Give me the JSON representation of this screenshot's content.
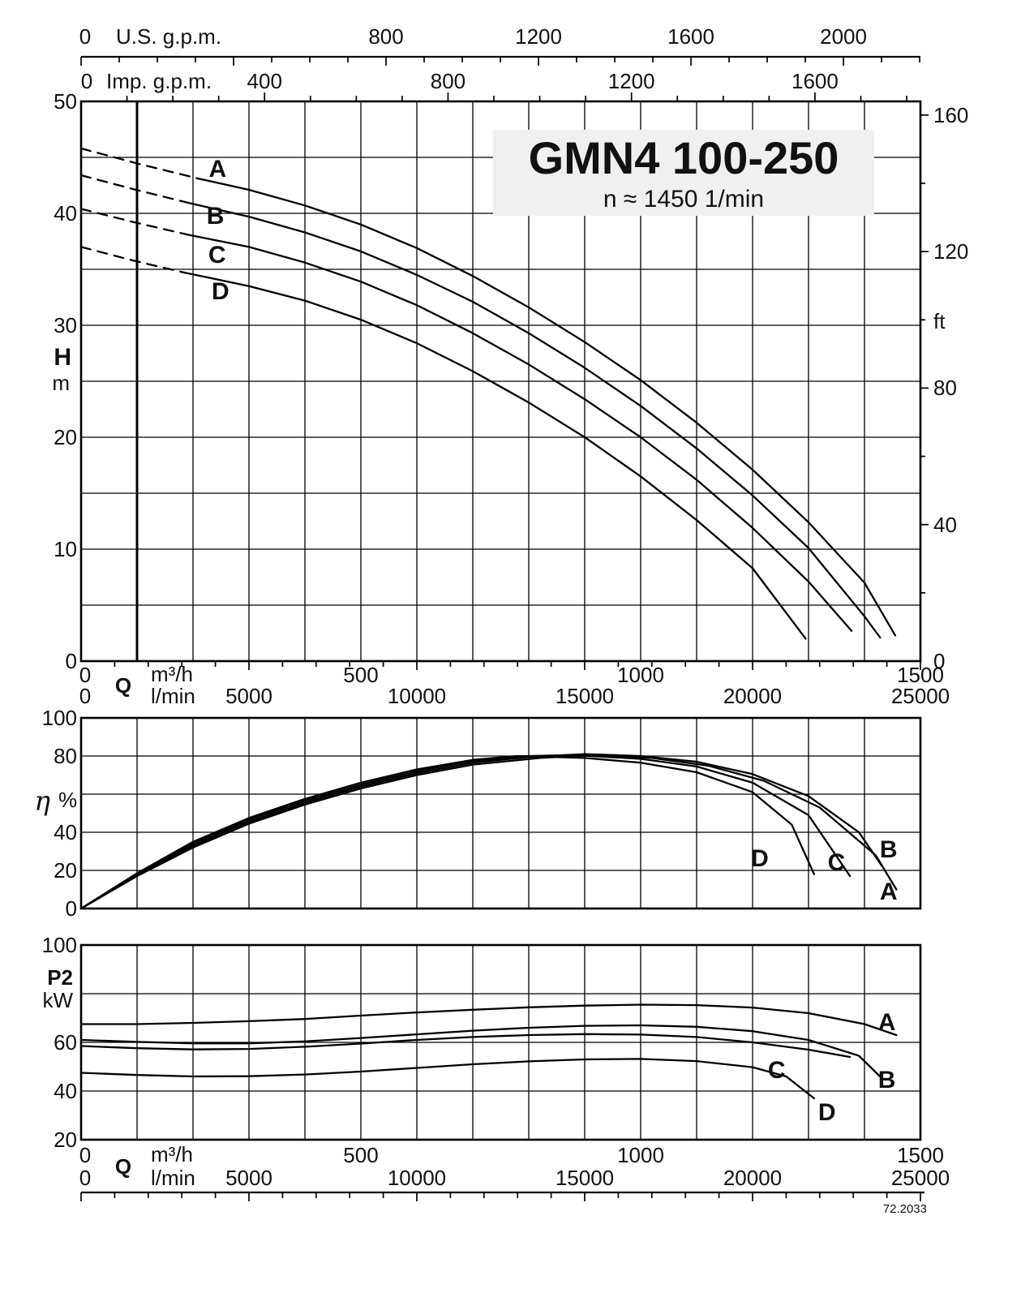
{
  "page": {
    "code": "72.2033"
  },
  "chart_data": [
    {
      "id": "head-capacity",
      "type": "line",
      "title": "GMN4 100-250",
      "subtitle": "n ≈ 1450 1/min",
      "x_top": [
        {
          "unit": "U.S. g.p.m.",
          "ticks": [
            0,
            800,
            1200,
            1600,
            2000
          ],
          "range": [
            0,
            2202
          ]
        },
        {
          "unit": "Imp. g.p.m.",
          "ticks": [
            0,
            400,
            800,
            1200,
            1600
          ],
          "range": [
            0,
            1830
          ]
        }
      ],
      "x_bottom": {
        "q_label": "Q",
        "unit_m3h": "m³/h",
        "unit_lmin": "l/min",
        "ticks_m3h": [
          0,
          500,
          1000,
          1500
        ],
        "ticks_lmin": [
          0,
          5000,
          10000,
          15000,
          20000,
          25000
        ],
        "range_m3h": [
          0,
          1500
        ]
      },
      "y_left": {
        "label": "H",
        "unit": "m",
        "ticks": [
          50,
          40,
          30,
          20,
          10,
          0
        ],
        "range": [
          0,
          50
        ],
        "grid_step": 5
      },
      "y_right": {
        "unit": "ft",
        "ticks": [
          160,
          120,
          80,
          40,
          0
        ],
        "range": [
          0,
          164
        ]
      },
      "series": [
        {
          "name": "A",
          "dash": [
            [
              0,
              45.8
            ],
            [
              105,
              44.4
            ],
            [
              210,
              43.1
            ]
          ],
          "points": [
            [
              210,
              43.1
            ],
            [
              300,
              42.1
            ],
            [
              400,
              40.7
            ],
            [
              500,
              39
            ],
            [
              600,
              36.9
            ],
            [
              700,
              34.4
            ],
            [
              800,
              31.6
            ],
            [
              900,
              28.5
            ],
            [
              1000,
              25.1
            ],
            [
              1100,
              21.3
            ],
            [
              1200,
              17.1
            ],
            [
              1300,
              12.4
            ],
            [
              1400,
              7
            ],
            [
              1455,
              2.3
            ]
          ]
        },
        {
          "name": "B",
          "dash": [
            [
              0,
              43.4
            ],
            [
              98,
              42.1
            ],
            [
              195,
              40.9
            ]
          ],
          "points": [
            [
              195,
              40.9
            ],
            [
              300,
              39.7
            ],
            [
              400,
              38.3
            ],
            [
              500,
              36.6
            ],
            [
              600,
              34.5
            ],
            [
              700,
              32.1
            ],
            [
              800,
              29.3
            ],
            [
              900,
              26.2
            ],
            [
              1000,
              22.8
            ],
            [
              1100,
              19
            ],
            [
              1200,
              14.8
            ],
            [
              1300,
              10.1
            ],
            [
              1400,
              4
            ],
            [
              1428,
              2.1
            ]
          ]
        },
        {
          "name": "C",
          "dash": [
            [
              0,
              40.4
            ],
            [
              95,
              39.2
            ],
            [
              190,
              38.1
            ]
          ],
          "points": [
            [
              190,
              38.1
            ],
            [
              300,
              37
            ],
            [
              400,
              35.6
            ],
            [
              500,
              33.9
            ],
            [
              600,
              31.8
            ],
            [
              700,
              29.3
            ],
            [
              800,
              26.5
            ],
            [
              900,
              23.4
            ],
            [
              1000,
              20
            ],
            [
              1100,
              16.2
            ],
            [
              1200,
              11.9
            ],
            [
              1300,
              7.1
            ],
            [
              1377,
              2.7
            ]
          ]
        },
        {
          "name": "D",
          "dash": [
            [
              0,
              37
            ],
            [
              92,
              35.8
            ],
            [
              185,
              34.7
            ]
          ],
          "points": [
            [
              185,
              34.7
            ],
            [
              300,
              33.5
            ],
            [
              400,
              32.2
            ],
            [
              500,
              30.5
            ],
            [
              600,
              28.4
            ],
            [
              700,
              25.9
            ],
            [
              800,
              23.1
            ],
            [
              900,
              20
            ],
            [
              1000,
              16.5
            ],
            [
              1100,
              12.6
            ],
            [
              1200,
              8.3
            ],
            [
              1295,
              2
            ]
          ]
        }
      ],
      "curve_labels": [
        {
          "text": "A",
          "q": 244,
          "v": 43.9
        },
        {
          "text": "B",
          "q": 240,
          "v": 39.7
        },
        {
          "text": "C",
          "q": 243,
          "v": 36.2
        },
        {
          "text": "D",
          "q": 249,
          "v": 33.0
        }
      ]
    },
    {
      "id": "efficiency",
      "type": "line",
      "y_left": {
        "label": "η",
        "unit": "%",
        "ticks": [
          100,
          80,
          40,
          20,
          0
        ],
        "range": [
          0,
          100
        ],
        "grid_step": 20
      },
      "series": [
        {
          "name": "A",
          "points": [
            [
              0,
              0
            ],
            [
              100,
              17
            ],
            [
              200,
              32
            ],
            [
              300,
              44.5
            ],
            [
              400,
              54.5
            ],
            [
              500,
              63
            ],
            [
              600,
              70
            ],
            [
              700,
              75.5
            ],
            [
              820,
              79
            ],
            [
              920,
              80.5
            ],
            [
              1020,
              79
            ],
            [
              1120,
              75
            ],
            [
              1220,
              67
            ],
            [
              1320,
              53
            ],
            [
              1420,
              28
            ],
            [
              1457,
              10
            ]
          ]
        },
        {
          "name": "B",
          "points": [
            [
              0,
              0
            ],
            [
              100,
              17.5
            ],
            [
              200,
              33
            ],
            [
              300,
              45.5
            ],
            [
              400,
              55.5
            ],
            [
              500,
              64
            ],
            [
              600,
              71
            ],
            [
              700,
              76.5
            ],
            [
              800,
              79.5
            ],
            [
              900,
              81
            ],
            [
              1000,
              80
            ],
            [
              1100,
              77
            ],
            [
              1200,
              70.5
            ],
            [
              1300,
              59
            ],
            [
              1390,
              40
            ],
            [
              1432,
              22
            ]
          ]
        },
        {
          "name": "C",
          "points": [
            [
              0,
              0
            ],
            [
              100,
              18
            ],
            [
              200,
              34
            ],
            [
              300,
              46.5
            ],
            [
              400,
              56.5
            ],
            [
              500,
              65
            ],
            [
              600,
              72
            ],
            [
              700,
              77.5
            ],
            [
              800,
              80
            ],
            [
              880,
              80.5
            ],
            [
              1000,
              78.5
            ],
            [
              1100,
              74.5
            ],
            [
              1200,
              66
            ],
            [
              1300,
              49
            ],
            [
              1374,
              17
            ]
          ]
        },
        {
          "name": "D",
          "points": [
            [
              0,
              0
            ],
            [
              100,
              18.5
            ],
            [
              200,
              35
            ],
            [
              300,
              47.5
            ],
            [
              400,
              57.5
            ],
            [
              500,
              66
            ],
            [
              600,
              73
            ],
            [
              700,
              78
            ],
            [
              780,
              80
            ],
            [
              900,
              79
            ],
            [
              1000,
              76.5
            ],
            [
              1100,
              71.5
            ],
            [
              1200,
              61
            ],
            [
              1270,
              44
            ],
            [
              1310,
              18
            ]
          ]
        }
      ],
      "curve_labels": [
        {
          "text": "D",
          "q": 1213,
          "v": 26
        },
        {
          "text": "C",
          "q": 1350,
          "v": 24
        },
        {
          "text": "B",
          "q": 1443,
          "v": 30.5
        },
        {
          "text": "A",
          "q": 1443,
          "v": 8.5
        }
      ]
    },
    {
      "id": "power",
      "type": "line",
      "y_left": {
        "label": "P2",
        "unit": "kW",
        "ticks": [
          100,
          60,
          40,
          20
        ],
        "range": [
          20,
          100
        ],
        "grid_step": 20
      },
      "x_bottom": {
        "q_label": "Q",
        "unit_m3h": "m³/h",
        "unit_lmin": "l/min",
        "ticks_m3h": [
          0,
          500,
          1000,
          1500
        ],
        "ticks_lmin": [
          0,
          5000,
          10000,
          15000,
          20000,
          25000
        ],
        "range_m3h": [
          0,
          1500
        ]
      },
      "series": [
        {
          "name": "A",
          "points": [
            [
              0,
              67.5
            ],
            [
              100,
              67.5
            ],
            [
              200,
              68
            ],
            [
              300,
              68.7
            ],
            [
              400,
              69.6
            ],
            [
              500,
              71
            ],
            [
              600,
              72.3
            ],
            [
              700,
              73.4
            ],
            [
              800,
              74.4
            ],
            [
              900,
              75.1
            ],
            [
              1000,
              75.5
            ],
            [
              1100,
              75.3
            ],
            [
              1200,
              74.3
            ],
            [
              1300,
              72
            ],
            [
              1400,
              67.5
            ],
            [
              1457,
              63
            ]
          ]
        },
        {
          "name": "B",
          "points": [
            [
              0,
              61
            ],
            [
              100,
              60.2
            ],
            [
              200,
              59.6
            ],
            [
              300,
              59.6
            ],
            [
              400,
              60.4
            ],
            [
              500,
              61.8
            ],
            [
              600,
              63.3
            ],
            [
              700,
              64.8
            ],
            [
              800,
              66
            ],
            [
              900,
              66.8
            ],
            [
              1000,
              67
            ],
            [
              1100,
              66.4
            ],
            [
              1200,
              64.6
            ],
            [
              1300,
              61
            ],
            [
              1390,
              54.5
            ],
            [
              1432,
              45
            ]
          ]
        },
        {
          "name": "C",
          "points": [
            [
              0,
              58.5
            ],
            [
              100,
              57.6
            ],
            [
              200,
              57.1
            ],
            [
              300,
              57.3
            ],
            [
              400,
              58.2
            ],
            [
              500,
              59.5
            ],
            [
              600,
              61
            ],
            [
              700,
              62.2
            ],
            [
              800,
              63
            ],
            [
              900,
              63.4
            ],
            [
              1000,
              63.2
            ],
            [
              1100,
              62.2
            ],
            [
              1200,
              60
            ],
            [
              1300,
              57
            ],
            [
              1374,
              54
            ]
          ]
        },
        {
          "name": "D",
          "points": [
            [
              0,
              47.5
            ],
            [
              100,
              46.6
            ],
            [
              200,
              46
            ],
            [
              300,
              46.1
            ],
            [
              400,
              46.8
            ],
            [
              500,
              48
            ],
            [
              600,
              49.5
            ],
            [
              700,
              51
            ],
            [
              800,
              52.2
            ],
            [
              900,
              53
            ],
            [
              1000,
              53.2
            ],
            [
              1100,
              52.3
            ],
            [
              1200,
              49.8
            ],
            [
              1260,
              46
            ],
            [
              1310,
              37
            ]
          ]
        }
      ],
      "curve_labels": [
        {
          "text": "A",
          "q": 1440,
          "v": 68
        },
        {
          "text": "C",
          "q": 1243,
          "v": 48.5
        },
        {
          "text": "B",
          "q": 1440,
          "v": 44.5
        },
        {
          "text": "D",
          "q": 1333,
          "v": 31
        }
      ]
    }
  ]
}
